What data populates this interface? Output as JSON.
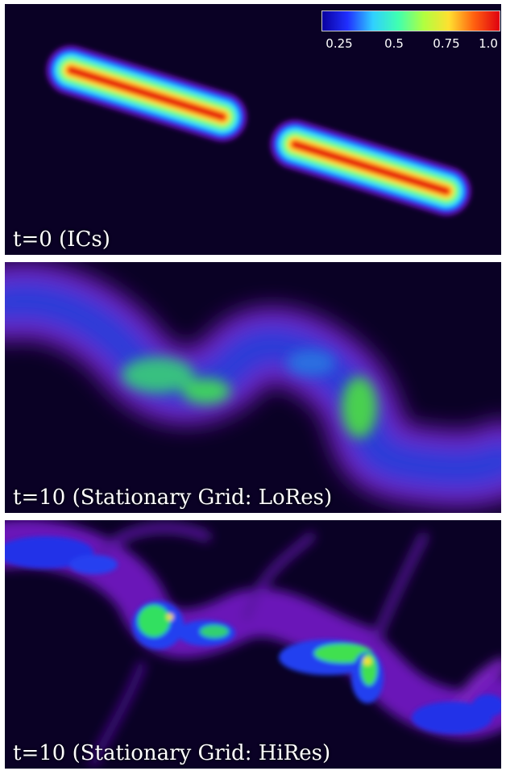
{
  "panels": [
    {
      "label": "t=0 (ICs)"
    },
    {
      "label": "t=10 (Stationary Grid: LoRes)"
    },
    {
      "label": "t=10 (Stationary Grid: HiRes)"
    }
  ],
  "colorbar": {
    "ticks": [
      "0.25",
      "0.5",
      "0.75",
      "1.0"
    ],
    "colors": [
      "#0a00a0",
      "#2030ff",
      "#30d0ff",
      "#40ffb0",
      "#b0ff40",
      "#ffe030",
      "#ff6010",
      "#e00010"
    ]
  }
}
